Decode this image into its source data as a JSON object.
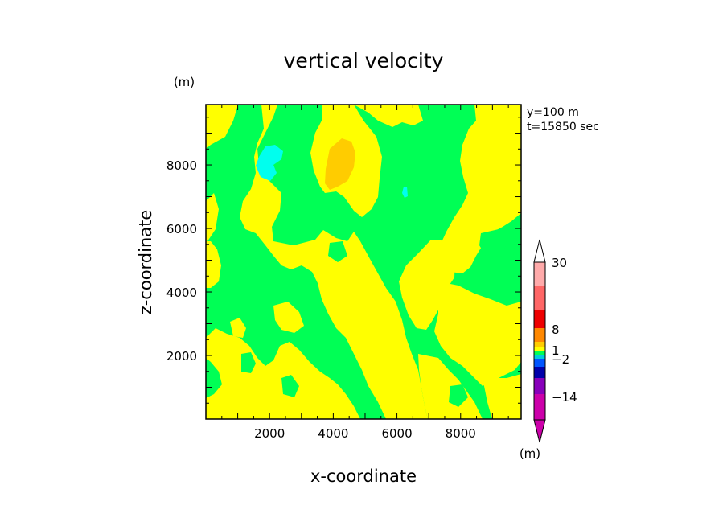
{
  "chart_data": {
    "type": "contour",
    "title": "vertical velocity",
    "xlabel": "x-coordinate",
    "ylabel": "z-coordinate",
    "units_label": "(m)",
    "annotation_line1": "y=100 m",
    "annotation_line2": "t=15850 sec",
    "xlim": [
      0,
      9900
    ],
    "ylim": [
      0,
      9900
    ],
    "xticks": [
      2000,
      4000,
      6000,
      8000
    ],
    "yticks": [
      2000,
      4000,
      6000,
      8000
    ],
    "xtick_labels": [
      "2000",
      "4000",
      "6000",
      "8000"
    ],
    "ytick_labels": [
      "2000",
      "4000",
      "6000",
      "8000"
    ],
    "colorbar": {
      "labels": [
        "30",
        "8",
        "1",
        "-2",
        "-14"
      ],
      "units_label": "(m)",
      "extend": "both",
      "top_arrow_color": "#ffffff",
      "bottom_arrow_color": "#cc00aa",
      "segment_colors": [
        "#cc00aa",
        "#8800bb",
        "#0000aa",
        "#0055ff",
        "#00ccdd",
        "#00ff55",
        "#ffff00",
        "#ffcc00",
        "#ff8800",
        "#ee0000",
        "#ff6666",
        "#ffaaaa"
      ]
    },
    "field": {
      "background_level": "#00ff55",
      "regions_yellow": "#ffff00",
      "regions_orange": "#ffcc00",
      "regions_cyan": "#00ffee",
      "regions_blue_cyan": "#00ccee"
    }
  }
}
